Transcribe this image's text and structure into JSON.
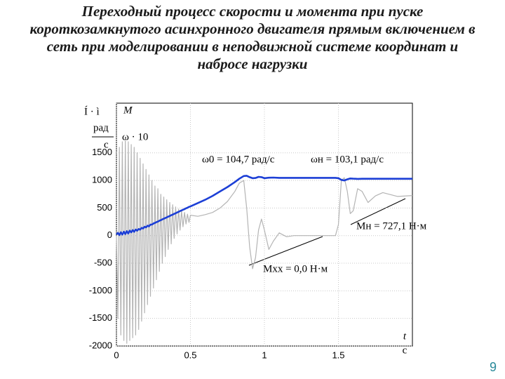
{
  "chart_data": {
    "type": "line",
    "title": "Переходный процесс скорости и момента при пуске короткозамкнутого асинхронного двигателя прямым включением в сеть при моделировании в неподвижной системе координат и набросе нагрузки",
    "y_label_lines": [
      "Í · ì",
      "рад",
      "с",
      "M",
      "ω · 10"
    ],
    "x_label_lines": [
      "t",
      "c"
    ],
    "annotations": [
      "ω0 = 104,7 рад/с",
      "ωн = 103,1 рад/с",
      "Mн = 727,1 Н·м",
      "Mхх = 0,0 Н·м"
    ],
    "x": [
      0,
      0.01,
      0.02,
      0.03,
      0.04,
      0.05,
      0.06,
      0.07,
      0.08,
      0.09,
      0.1,
      0.11,
      0.12,
      0.13,
      0.14,
      0.15,
      0.16,
      0.17,
      0.18,
      0.19,
      0.2,
      0.21,
      0.22,
      0.23,
      0.24,
      0.25,
      0.26,
      0.27,
      0.28,
      0.29,
      0.3,
      0.31,
      0.32,
      0.33,
      0.34,
      0.35,
      0.36,
      0.37,
      0.38,
      0.39,
      0.4,
      0.41,
      0.42,
      0.43,
      0.44,
      0.45,
      0.46,
      0.47,
      0.48,
      0.49,
      0.5,
      0.55,
      0.6,
      0.65,
      0.7,
      0.75,
      0.8,
      0.83,
      0.86,
      0.88,
      0.9,
      0.92,
      0.94,
      0.96,
      0.98,
      1.0,
      1.03,
      1.06,
      1.1,
      1.15,
      1.2,
      1.3,
      1.4,
      1.48,
      1.5,
      1.52,
      1.54,
      1.56,
      1.58,
      1.6,
      1.63,
      1.66,
      1.7,
      1.75,
      1.8,
      1.9,
      2.0
    ],
    "series": [
      {
        "name": "M",
        "color": "#b4b4b4",
        "width": 1.2,
        "values": [
          0,
          -1500,
          1600,
          -1800,
          1700,
          -1900,
          1750,
          -1950,
          1700,
          -1900,
          1650,
          -1850,
          1600,
          -1800,
          1500,
          -1700,
          1400,
          -1550,
          1300,
          -1400,
          1200,
          -1250,
          1100,
          -1100,
          1000,
          -950,
          900,
          -800,
          850,
          -650,
          750,
          -500,
          700,
          -380,
          650,
          -250,
          600,
          -150,
          560,
          -50,
          520,
          30,
          480,
          100,
          450,
          160,
          420,
          210,
          390,
          240,
          370,
          350,
          380,
          420,
          500,
          620,
          800,
          950,
          1000,
          500,
          -200,
          -600,
          -400,
          100,
          300,
          100,
          -250,
          -100,
          50,
          -20,
          0,
          0,
          0,
          0,
          200,
          1000,
          1050,
          800,
          400,
          450,
          850,
          800,
          600,
          720,
          780,
          710,
          727
        ]
      },
      {
        "name": "ω · 10",
        "color": "#1c3fd6",
        "width": 2.6,
        "values": [
          20,
          50,
          10,
          60,
          20,
          70,
          30,
          80,
          40,
          90,
          60,
          100,
          70,
          110,
          90,
          120,
          110,
          140,
          130,
          160,
          150,
          180,
          170,
          200,
          200,
          220,
          230,
          245,
          255,
          270,
          280,
          295,
          305,
          320,
          330,
          345,
          355,
          370,
          380,
          395,
          405,
          420,
          430,
          445,
          455,
          470,
          480,
          495,
          505,
          520,
          530,
          590,
          650,
          720,
          800,
          880,
          970,
          1030,
          1080,
          1085,
          1060,
          1040,
          1045,
          1065,
          1060,
          1040,
          1050,
          1052,
          1047,
          1047,
          1047,
          1047,
          1047,
          1047,
          1040,
          1010,
          1000,
          1020,
          1035,
          1032,
          1028,
          1030,
          1031,
          1031,
          1031,
          1031,
          1031
        ]
      }
    ],
    "xlim": [
      0,
      2
    ],
    "xticks": [
      0,
      0.5,
      1,
      1.5
    ],
    "ylim": [
      -2000,
      2400
    ],
    "yticks": [
      -2000,
      -1500,
      -1000,
      -500,
      0,
      500,
      1000,
      1500
    ],
    "grid": true
  },
  "page_number": "9"
}
